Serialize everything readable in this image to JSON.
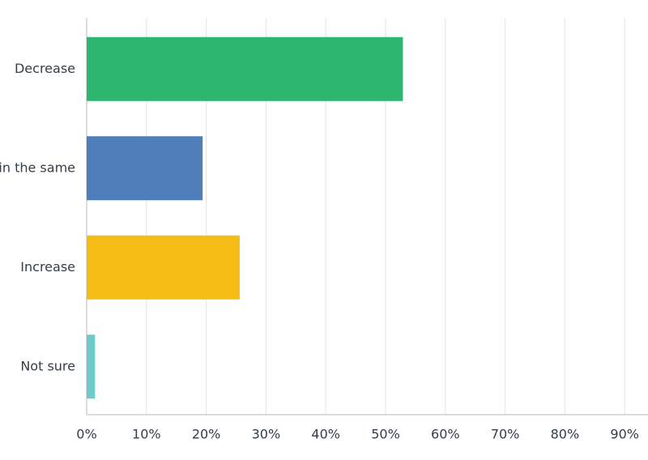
{
  "chart_data": {
    "type": "bar",
    "orientation": "horizontal",
    "categories": [
      "Decrease",
      "Remain the same",
      "Increase",
      "Not sure"
    ],
    "values": [
      52.9,
      19.4,
      25.6,
      1.4
    ],
    "colors": [
      "#2db670",
      "#4f7fba",
      "#f6bc16",
      "#6ecbcc"
    ],
    "xlim": [
      0,
      100
    ],
    "xticks": [
      {
        "value": 0,
        "label": "0%"
      },
      {
        "value": 10,
        "label": "10%"
      },
      {
        "value": 20,
        "label": "20%"
      },
      {
        "value": 30,
        "label": "30%"
      },
      {
        "value": 40,
        "label": "40%"
      },
      {
        "value": 50,
        "label": "50%"
      },
      {
        "value": 60,
        "label": "60%"
      },
      {
        "value": 70,
        "label": "70%"
      },
      {
        "value": 80,
        "label": "80%"
      },
      {
        "value": 90,
        "label": "90%"
      }
    ],
    "grid": true
  }
}
